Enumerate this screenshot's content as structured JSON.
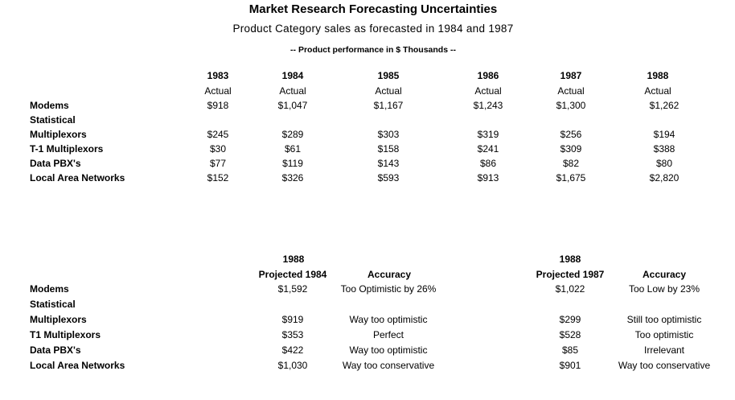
{
  "title": "Market Research Forecasting Uncertainties",
  "subtitle": "Product Category sales as forecasted in 1984 and 1987",
  "note": "-- Product performance in $ Thousands --",
  "actuals": {
    "years": [
      "1983",
      "1984",
      "1985",
      "1986",
      "1987",
      "1988"
    ],
    "type_label": "Actual",
    "rows": [
      {
        "label": "Modems",
        "values": [
          "$918",
          "$1,047",
          "$1,167",
          "$1,243",
          "$1,300",
          "$1,262"
        ]
      },
      {
        "label": "Statistical",
        "values": []
      },
      {
        "label": "Multiplexors",
        "values": [
          "$245",
          "$289",
          "$303",
          "$319",
          "$256",
          "$194"
        ]
      },
      {
        "label": "T-1 Multiplexors",
        "values": [
          "$30",
          "$61",
          "$158",
          "$241",
          "$309",
          "$388"
        ]
      },
      {
        "label": "Data PBX's",
        "values": [
          "$77",
          "$119",
          "$143",
          "$86",
          "$82",
          "$80"
        ]
      },
      {
        "label": "Local Area Networks",
        "values": [
          "$152",
          "$326",
          "$593",
          "$913",
          "$1,675",
          "$2,820"
        ]
      }
    ]
  },
  "forecasts": {
    "year": "1988",
    "proj1984_header": "Projected 1984",
    "proj1987_header": "Projected 1987",
    "accuracy_header": "Accuracy",
    "rows": [
      {
        "label": "Modems",
        "p84": "$1,592",
        "a84": "Too Optimistic by 26%",
        "p87": "$1,022",
        "a87": "Too Low by 23%"
      },
      {
        "label": "Statistical",
        "p84": "",
        "a84": "",
        "p87": "",
        "a87": ""
      },
      {
        "label": "Multiplexors",
        "p84": "$919",
        "a84": "Way too optimistic",
        "p87": "$299",
        "a87": "Still too optimistic"
      },
      {
        "label": "T1 Multiplexors",
        "p84": "$353",
        "a84": "Perfect",
        "p87": "$528",
        "a87": "Too optimistic"
      },
      {
        "label": "Data PBX's",
        "p84": "$422",
        "a84": "Way too optimistic",
        "p87": "$85",
        "a87": "Irrelevant"
      },
      {
        "label": "Local Area Networks",
        "p84": "$1,030",
        "a84": "Way too conservative",
        "p87": "$901",
        "a87": "Way too conservative"
      }
    ]
  }
}
